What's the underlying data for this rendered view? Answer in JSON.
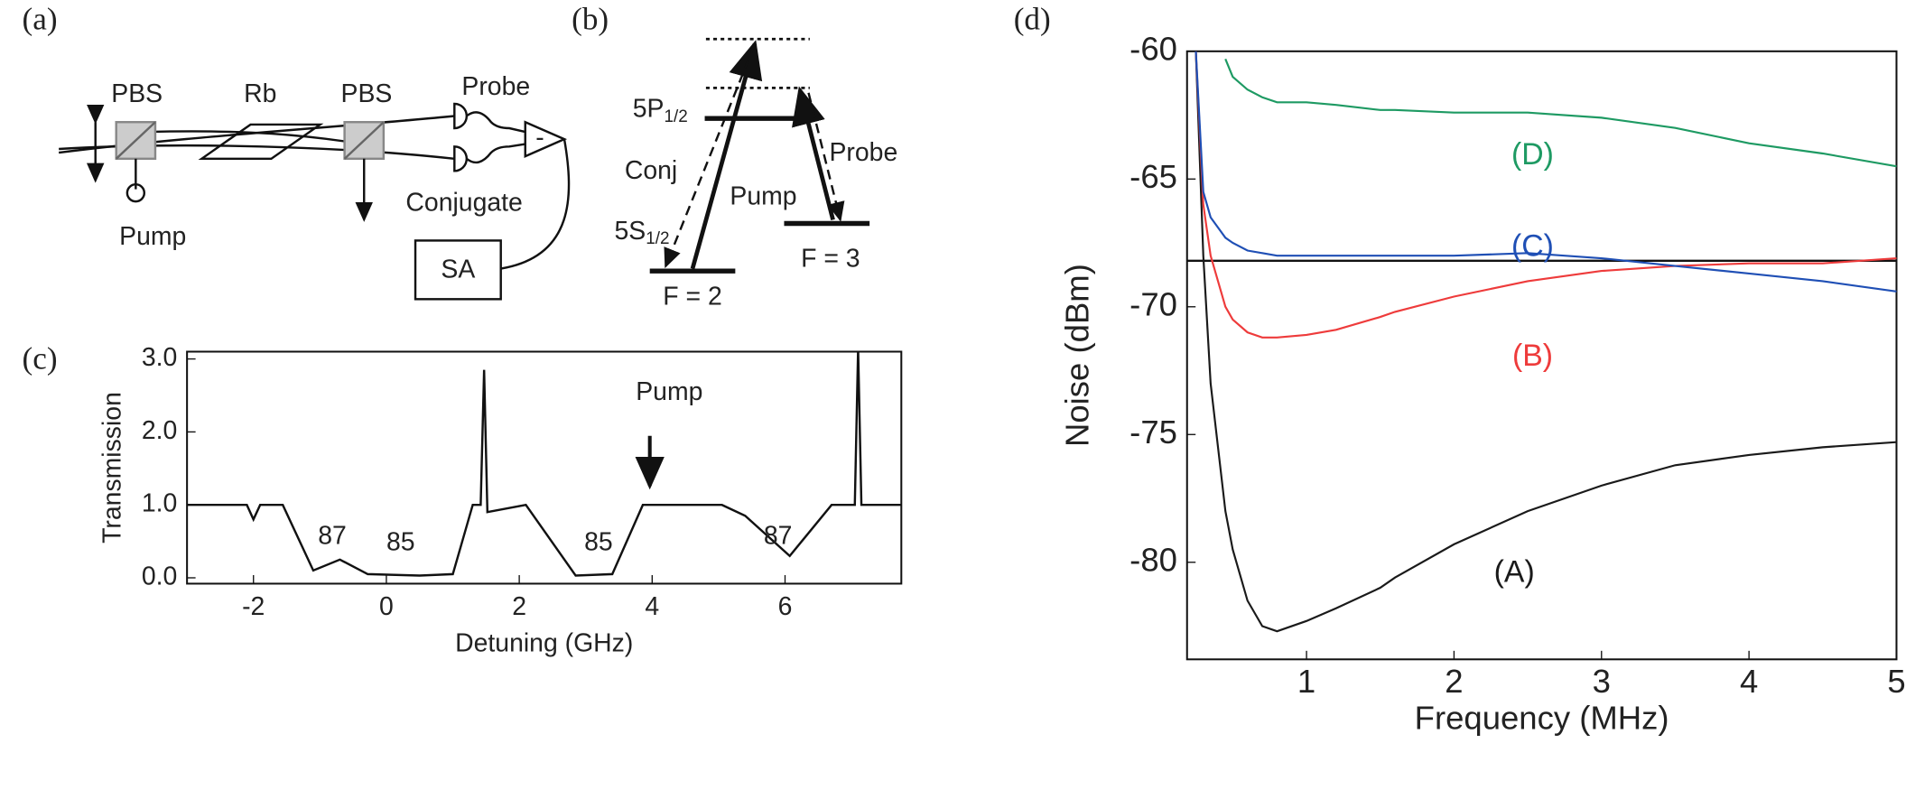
{
  "panel_labels": [
    "(a)",
    "(b)",
    "(c)",
    "(d)"
  ],
  "diagram_a": {
    "pbs_left": "PBS",
    "cell": "Rb",
    "pbs_right": "PBS",
    "probe": "Probe",
    "conjugate": "Conjugate",
    "pump": "Pump",
    "analyzer": "SA",
    "subtract": "-"
  },
  "diagram_b": {
    "upper_level": {
      "main": "5P",
      "sub": "1/2"
    },
    "lower_level": {
      "main": "5S",
      "sub": "1/2"
    },
    "conj": "Conj",
    "pump": "Pump",
    "probe": "Probe",
    "f2": "F = 2",
    "f3": "F = 3"
  },
  "chart_data": [
    {
      "type": "line",
      "x_label": "Detuning (GHz)",
      "y_label": "Transmission",
      "color": "#111111",
      "annotations": [
        "87",
        "85",
        "85",
        "87",
        "Pump"
      ],
      "x": [
        -3.0,
        -2.1,
        -2.0,
        -1.9,
        -1.56,
        -1.1,
        -0.7,
        -0.28,
        0.5,
        1.0,
        1.3,
        1.42,
        1.47,
        1.52,
        2.1,
        2.85,
        3.4,
        3.86,
        5.05,
        5.4,
        6.07,
        6.7,
        7.05,
        7.1,
        7.15,
        7.75
      ],
      "values": [
        1.0,
        1.0,
        0.8,
        1.0,
        1.0,
        0.1,
        0.25,
        0.05,
        0.03,
        0.05,
        1.0,
        1.0,
        2.85,
        0.9,
        1.0,
        0.03,
        0.05,
        1.0,
        1.0,
        0.85,
        0.3,
        1.0,
        1.0,
        3.15,
        1.0,
        1.0
      ],
      "xlim": [
        -3.0,
        7.75
      ],
      "ylim": [
        -0.08,
        3.1
      ],
      "xticks": [
        -2,
        0,
        2,
        4,
        6
      ],
      "yticks": [
        {
          "value": 0,
          "label": "0.0"
        },
        {
          "value": 1,
          "label": "1.0"
        },
        {
          "value": 2,
          "label": "2.0"
        },
        {
          "value": 3,
          "label": "3.0"
        }
      ]
    },
    {
      "type": "line",
      "x_label": "Frequency (MHz)",
      "y_label": "Noise (dBm)",
      "hline": -68.2,
      "x": [
        0.25,
        0.3,
        0.35,
        0.45,
        0.5,
        0.6,
        0.7,
        0.8,
        1.0,
        1.2,
        1.5,
        1.6,
        2.0,
        2.5,
        3.0,
        3.5,
        4.0,
        4.5,
        5.0
      ],
      "series": [
        {
          "name": "(A)",
          "color": "#1a1a1a",
          "values": [
            -60,
            -68,
            -73,
            -78,
            -79.5,
            -81.5,
            -82.5,
            -82.7,
            -82.3,
            -81.8,
            -81,
            -80.6,
            -79.3,
            -78,
            -77,
            -76.2,
            -75.8,
            -75.5,
            -75.3
          ]
        },
        {
          "name": "(B)",
          "color": "#ee3b3b",
          "values": [
            -60,
            -66,
            -68,
            -70,
            -70.5,
            -71,
            -71.2,
            -71.2,
            -71.1,
            -70.9,
            -70.4,
            -70.2,
            -69.6,
            -69,
            -68.6,
            -68.4,
            -68.3,
            -68.3,
            -68.1
          ]
        },
        {
          "name": "(C)",
          "color": "#1f4fb5",
          "values": [
            -60,
            -65.5,
            -66.5,
            -67.3,
            -67.5,
            -67.8,
            -67.9,
            -68,
            -68,
            -68,
            -68,
            -68,
            -68,
            -67.9,
            -68.1,
            -68.4,
            -68.7,
            -69,
            -69.4
          ]
        },
        {
          "name": "(D)",
          "color": "#1e9a63",
          "values": [
            null,
            null,
            null,
            -60.3,
            -61,
            -61.5,
            -61.8,
            -62,
            -62,
            -62.1,
            -62.3,
            -62.3,
            -62.4,
            -62.4,
            -62.6,
            -63,
            -63.6,
            -64,
            -64.5
          ]
        }
      ],
      "xlim": [
        0.19,
        5
      ],
      "ylim": [
        -83.8,
        -60
      ],
      "xticks": [
        1,
        2,
        3,
        4,
        5
      ],
      "yticks": [
        -60,
        -65,
        -70,
        -75,
        -80
      ]
    }
  ]
}
